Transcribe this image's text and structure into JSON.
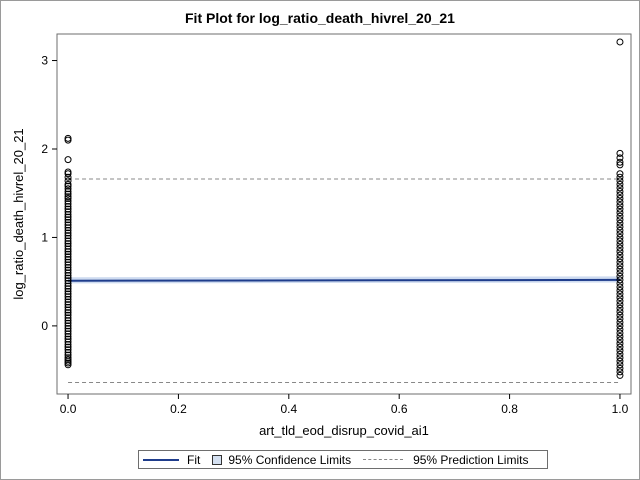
{
  "chart_data": {
    "type": "scatter",
    "title": "Fit Plot for log_ratio_death_hivrel_20_21",
    "xlabel": "art_tld_eod_disrup_covid_ai1",
    "ylabel": "log_ratio_death_hivrel_20_21",
    "xlim": [
      -0.02,
      1.02
    ],
    "ylim": [
      -0.77,
      3.3
    ],
    "x_ticks": [
      0.0,
      0.2,
      0.4,
      0.6,
      0.8,
      1.0
    ],
    "x_tick_labels": [
      "0.0",
      "0.2",
      "0.4",
      "0.6",
      "0.8",
      "1.0"
    ],
    "y_ticks": [
      0,
      1,
      2,
      3
    ],
    "y_tick_labels": [
      "0",
      "1",
      "2",
      "3"
    ],
    "fit": {
      "x": [
        0.0,
        1.0
      ],
      "y": [
        0.51,
        0.52
      ]
    },
    "confidence_limits": {
      "lower": [
        0.48,
        0.49
      ],
      "upper": [
        0.55,
        0.56
      ]
    },
    "prediction_limits": {
      "lower": -0.64,
      "upper": 1.66
    },
    "points": {
      "x0": [
        2.12,
        2.1,
        1.88,
        1.74,
        1.72,
        1.68,
        1.64,
        1.6,
        1.58,
        1.55,
        1.52,
        1.49,
        1.46,
        1.44,
        1.41,
        1.38,
        1.35,
        1.32,
        1.29,
        1.26,
        1.23,
        1.2,
        1.17,
        1.14,
        1.11,
        1.08,
        1.05,
        1.02,
        0.99,
        0.96,
        0.93,
        0.9,
        0.87,
        0.84,
        0.81,
        0.78,
        0.75,
        0.72,
        0.69,
        0.66,
        0.63,
        0.6,
        0.57,
        0.54,
        0.51,
        0.48,
        0.45,
        0.42,
        0.39,
        0.36,
        0.33,
        0.3,
        0.27,
        0.24,
        0.21,
        0.18,
        0.15,
        0.12,
        0.09,
        0.06,
        0.03,
        0.0,
        -0.03,
        -0.06,
        -0.09,
        -0.12,
        -0.15,
        -0.18,
        -0.21,
        -0.24,
        -0.27,
        -0.3,
        -0.33,
        -0.36,
        -0.38,
        -0.4,
        -0.42,
        -0.44
      ],
      "x1": [
        3.21,
        1.95,
        1.9,
        1.85,
        1.82,
        1.72,
        1.68,
        1.64,
        1.6,
        1.56,
        1.52,
        1.48,
        1.44,
        1.4,
        1.36,
        1.32,
        1.28,
        1.24,
        1.2,
        1.16,
        1.12,
        1.08,
        1.04,
        1.0,
        0.96,
        0.92,
        0.88,
        0.84,
        0.8,
        0.76,
        0.72,
        0.68,
        0.64,
        0.6,
        0.56,
        0.52,
        0.48,
        0.44,
        0.4,
        0.36,
        0.32,
        0.28,
        0.24,
        0.2,
        0.16,
        0.12,
        0.08,
        0.04,
        0.0,
        -0.04,
        -0.08,
        -0.12,
        -0.16,
        -0.2,
        -0.24,
        -0.28,
        -0.32,
        -0.36,
        -0.4,
        -0.44,
        -0.48,
        -0.52,
        -0.56
      ]
    }
  },
  "legend": {
    "fit_label": "Fit",
    "ci_label": "95% Confidence Limits",
    "pi_label": "95% Prediction Limits"
  },
  "colors": {
    "fit": "#1f3d8c",
    "confidence_band": "#c9d7ee",
    "prediction": "#888888",
    "marker": "#000000"
  }
}
